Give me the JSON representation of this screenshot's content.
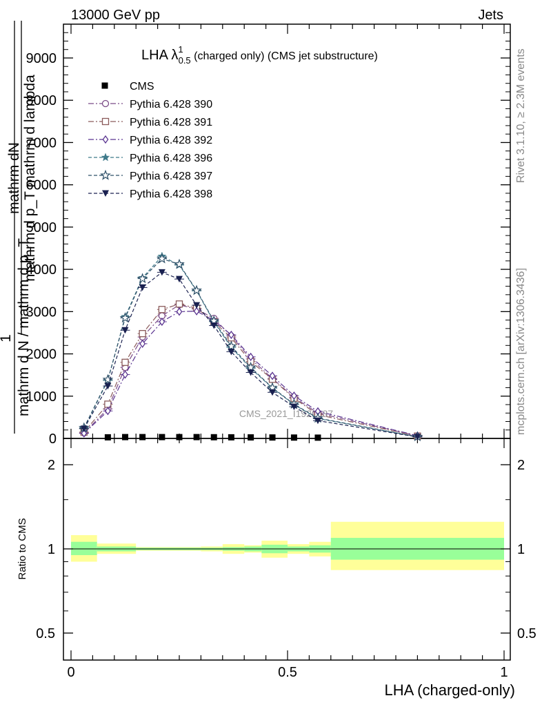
{
  "header": {
    "left": "13000 GeV pp",
    "right": "Jets"
  },
  "side": {
    "top": "Rivet 3.1.10, ≥ 2.3M events",
    "bottom": "mcplots.cern.ch [arXiv:1306.3436]"
  },
  "watermark": "CMS_2021_I1920487",
  "chart_data": {
    "type": "line",
    "title": {
      "main": "LHA λ",
      "sup": "1",
      "sub": "0.5",
      "rest": " (charged only) (CMS jet substructure)"
    },
    "ylabel": {
      "numer": "mathrm dN",
      "denom1": "mathrm d p_T mathrm d lambda",
      "one": "1",
      "frac_denom": "mathrm d N / mathrm d p_T"
    },
    "xlabel": "LHA (charged-only)",
    "xlim": [
      -0.02,
      1.02
    ],
    "ylim": [
      0,
      9800
    ],
    "x_ticks": [
      "0",
      "0.5",
      "1"
    ],
    "y_ticks": [
      "0",
      "1000",
      "2000",
      "3000",
      "4000",
      "5000",
      "6000",
      "7000",
      "8000",
      "9000"
    ],
    "x": [
      0.03,
      0.085,
      0.125,
      0.165,
      0.21,
      0.25,
      0.29,
      0.33,
      0.37,
      0.415,
      0.465,
      0.515,
      0.57,
      0.8
    ],
    "cms": [
      0,
      10,
      15,
      15,
      15,
      15,
      15,
      12,
      10,
      8,
      6,
      4,
      2,
      0
    ],
    "series": [
      {
        "name": "Pythia 6.428 390",
        "color": "#7a4a86",
        "marker": "circle-open",
        "dash": "8,3,2,3",
        "values": [
          130,
          700,
          1680,
          2400,
          2900,
          3160,
          3060,
          2840,
          2420,
          1880,
          1420,
          970,
          600,
          60
        ]
      },
      {
        "name": "Pythia 6.428 391",
        "color": "#8a5a5a",
        "marker": "square-open",
        "dash": "8,3,2,3",
        "values": [
          150,
          810,
          1800,
          2480,
          3050,
          3180,
          3080,
          2760,
          2380,
          1820,
          1400,
          950,
          560,
          55
        ]
      },
      {
        "name": "Pythia 6.428 392",
        "color": "#5a3490",
        "marker": "diamond-open",
        "dash": "8,3,2,3",
        "values": [
          120,
          650,
          1510,
          2240,
          2760,
          3000,
          3010,
          2790,
          2450,
          1930,
          1480,
          1010,
          640,
          65
        ]
      },
      {
        "name": "Pythia 6.428 396",
        "color": "#3f7a8a",
        "marker": "star-filled",
        "dash": "5,3",
        "values": [
          240,
          1370,
          2880,
          3800,
          4310,
          4100,
          3490,
          2760,
          2150,
          1660,
          1190,
          800,
          470,
          40
        ]
      },
      {
        "name": "Pythia 6.428 397",
        "color": "#2e5068",
        "marker": "star-open",
        "dash": "5,3",
        "values": [
          250,
          1390,
          2850,
          3780,
          4250,
          4120,
          3500,
          2780,
          2180,
          1680,
          1200,
          810,
          480,
          40
        ]
      },
      {
        "name": "Pythia 6.428 398",
        "color": "#1a2150",
        "marker": "triangle-down-filled",
        "dash": "5,3",
        "values": [
          230,
          1240,
          2560,
          3570,
          3930,
          3770,
          3150,
          2670,
          2050,
          1560,
          1090,
          750,
          420,
          35
        ]
      }
    ],
    "legend": {
      "data_label": "CMS",
      "position": "top-left"
    },
    "ratio": {
      "ylabel": "Ratio to CMS",
      "y_ticks": [
        "0.5",
        "1",
        "2"
      ],
      "bins": [
        0,
        0.06,
        0.15,
        0.3,
        0.35,
        0.4,
        0.44,
        0.5,
        0.55,
        0.6,
        1.0
      ],
      "inner": [
        [
          0.95,
          1.06
        ],
        [
          0.98,
          1.02
        ],
        [
          0.99,
          1.01
        ],
        [
          0.99,
          1.01
        ],
        [
          0.985,
          1.015
        ],
        [
          0.98,
          1.02
        ],
        [
          0.965,
          1.035
        ],
        [
          0.98,
          1.02
        ],
        [
          0.97,
          1.03
        ],
        [
          0.915,
          1.095
        ]
      ],
      "outer": [
        [
          0.9,
          1.12
        ],
        [
          0.96,
          1.045
        ],
        [
          0.985,
          1.015
        ],
        [
          0.98,
          1.02
        ],
        [
          0.96,
          1.04
        ],
        [
          0.97,
          1.03
        ],
        [
          0.93,
          1.07
        ],
        [
          0.96,
          1.04
        ],
        [
          0.94,
          1.06
        ],
        [
          0.84,
          1.25
        ]
      ],
      "colors": {
        "inner": "#99ff99",
        "outer": "#ffff99"
      }
    }
  }
}
